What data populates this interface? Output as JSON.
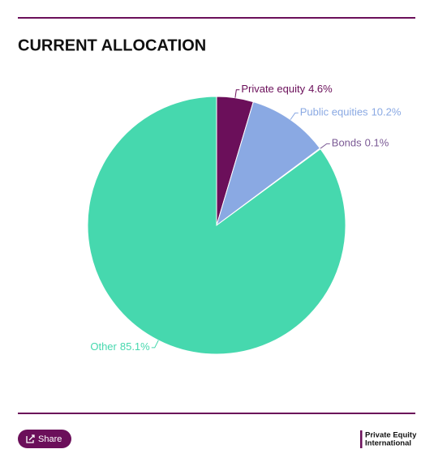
{
  "chart_data": {
    "type": "pie",
    "title": "CURRENT ALLOCATION",
    "categories": [
      "Private equity",
      "Public equities",
      "Bonds",
      "Other"
    ],
    "values": [
      4.6,
      10.2,
      0.1,
      85.1
    ],
    "value_labels": [
      "4.6%",
      "10.2%",
      "0.1%",
      "85.1%"
    ],
    "colors": [
      "#6b0f5a",
      "#8aa9e3",
      "#7b5a95",
      "#46d8ae"
    ]
  },
  "footer": {
    "share": "Share",
    "brand": [
      "Private Equity",
      "International"
    ]
  }
}
